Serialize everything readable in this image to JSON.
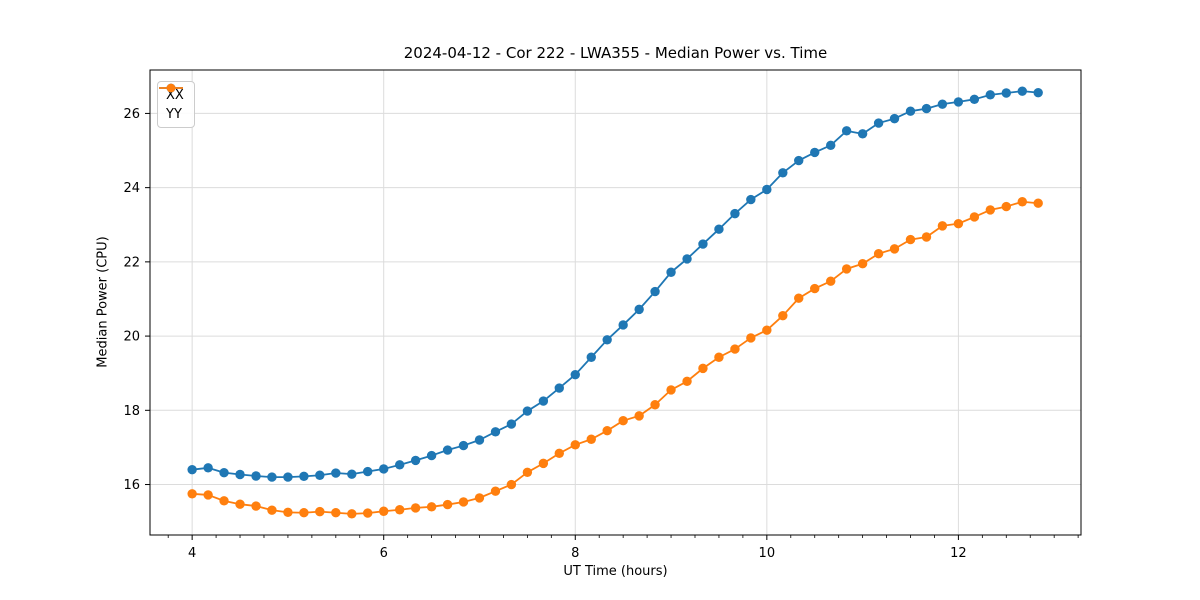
{
  "chart_data": {
    "type": "line",
    "title": "2024-04-12 - Cor 222 - LWA355 - Median Power vs. Time",
    "xlabel": "UT Time (hours)",
    "ylabel": "Median Power (CPU)",
    "xlim": [
      3.56,
      13.28
    ],
    "ylim": [
      14.64,
      27.17
    ],
    "x_major_ticks": [
      4,
      6,
      8,
      10,
      12
    ],
    "x_tick_labels": [
      "4",
      "6",
      "8",
      "10",
      "12"
    ],
    "x_minor_tick_step": 0.25,
    "y_major_ticks": [
      16,
      18,
      20,
      22,
      24,
      26
    ],
    "y_tick_labels": [
      "16",
      "18",
      "20",
      "22",
      "24",
      "26"
    ],
    "grid": true,
    "legend_position": "upper-left",
    "x": [
      4.0,
      4.167,
      4.333,
      4.5,
      4.667,
      4.833,
      5.0,
      5.167,
      5.333,
      5.5,
      5.667,
      5.833,
      6.0,
      6.167,
      6.333,
      6.5,
      6.667,
      6.833,
      7.0,
      7.167,
      7.333,
      7.5,
      7.667,
      7.833,
      8.0,
      8.167,
      8.333,
      8.5,
      8.667,
      8.833,
      9.0,
      9.167,
      9.333,
      9.5,
      9.667,
      9.833,
      10.0,
      10.167,
      10.333,
      10.5,
      10.667,
      10.833,
      11.0,
      11.167,
      11.333,
      11.5,
      11.667,
      11.833,
      12.0,
      12.167,
      12.333,
      12.5,
      12.667,
      12.833
    ],
    "series": [
      {
        "name": "XX",
        "color": "#1f77b4",
        "values": [
          16.4,
          16.45,
          16.32,
          16.27,
          16.23,
          16.2,
          16.2,
          16.22,
          16.25,
          16.31,
          16.28,
          16.35,
          16.42,
          16.53,
          16.65,
          16.78,
          16.93,
          17.05,
          17.2,
          17.42,
          17.63,
          17.98,
          18.25,
          18.6,
          18.96,
          19.43,
          19.9,
          20.3,
          20.72,
          21.2,
          21.72,
          22.08,
          22.48,
          22.88,
          23.3,
          23.68,
          23.95,
          24.4,
          24.73,
          24.95,
          25.14,
          25.53,
          25.45,
          25.74,
          25.86,
          26.06,
          26.13,
          26.25,
          26.31,
          26.38,
          26.5,
          26.55,
          26.6,
          26.56
        ]
      },
      {
        "name": "YY",
        "color": "#ff7f0e",
        "values": [
          15.75,
          15.72,
          15.56,
          15.47,
          15.42,
          15.31,
          15.25,
          15.24,
          15.27,
          15.24,
          15.21,
          15.23,
          15.28,
          15.32,
          15.37,
          15.4,
          15.46,
          15.53,
          15.64,
          15.82,
          16.0,
          16.33,
          16.57,
          16.84,
          17.07,
          17.22,
          17.45,
          17.72,
          17.85,
          18.15,
          18.55,
          18.78,
          19.13,
          19.43,
          19.65,
          19.95,
          20.16,
          20.55,
          21.02,
          21.28,
          21.48,
          21.81,
          21.95,
          22.22,
          22.35,
          22.6,
          22.67,
          22.97,
          23.03,
          23.21,
          23.4,
          23.49,
          23.62,
          23.58
        ]
      }
    ],
    "style": {
      "grid_color": "#dcdcdc",
      "spine_color": "#000000",
      "tick_color": "#000000",
      "text_color": "#000000",
      "background": "#ffffff"
    }
  }
}
